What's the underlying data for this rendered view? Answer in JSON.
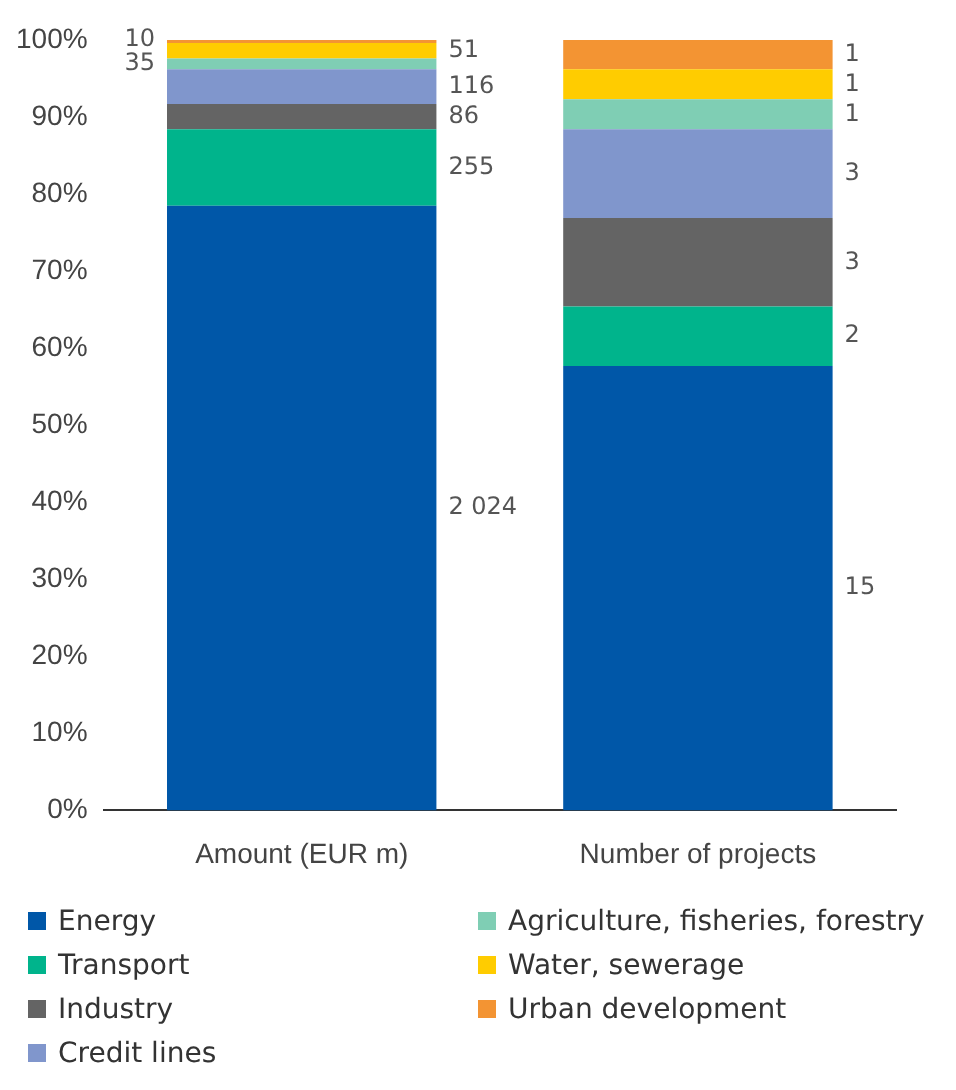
{
  "chart_data": {
    "type": "bar",
    "stacked": true,
    "categories": [
      "Amount (EUR m)",
      "Number of projects"
    ],
    "ylim": [
      0,
      100
    ],
    "yticks": [
      {
        "value": 0,
        "label": "0%"
      },
      {
        "value": 10,
        "label": "10%"
      },
      {
        "value": 20,
        "label": "20%"
      },
      {
        "value": 30,
        "label": "30%"
      },
      {
        "value": 40,
        "label": "40%"
      },
      {
        "value": 50,
        "label": "50%"
      },
      {
        "value": 60,
        "label": "60%"
      },
      {
        "value": 70,
        "label": "70%"
      },
      {
        "value": 80,
        "label": "80%"
      },
      {
        "value": 90,
        "label": "90%"
      },
      {
        "value": 100,
        "label": "100%"
      }
    ],
    "grid": false,
    "legend": "bottom",
    "series": [
      {
        "name": "Energy",
        "color": "#0057a8",
        "values": [
          78.5,
          57.7
        ]
      },
      {
        "name": "Transport",
        "color": "#00b48c",
        "values": [
          9.9,
          7.7
        ]
      },
      {
        "name": "Industry",
        "color": "#646464",
        "values": [
          3.3,
          11.5
        ]
      },
      {
        "name": "Credit lines",
        "color": "#8096cc",
        "values": [
          4.5,
          11.5
        ]
      },
      {
        "name": "Agriculture, fisheries, forestry",
        "color": "#7fceb4",
        "values": [
          1.4,
          3.9
        ]
      },
      {
        "name": "Water, sewerage",
        "color": "#ffcc00",
        "values": [
          2.0,
          3.9
        ]
      },
      {
        "name": "Urban development",
        "color": "#f39433",
        "values": [
          0.4,
          3.8
        ]
      }
    ],
    "annotations": [
      "2 024",
      "255",
      "86",
      "116",
      "35",
      "51",
      "10",
      "15",
      "2",
      "3",
      "3",
      "1",
      "1",
      "1"
    ]
  }
}
